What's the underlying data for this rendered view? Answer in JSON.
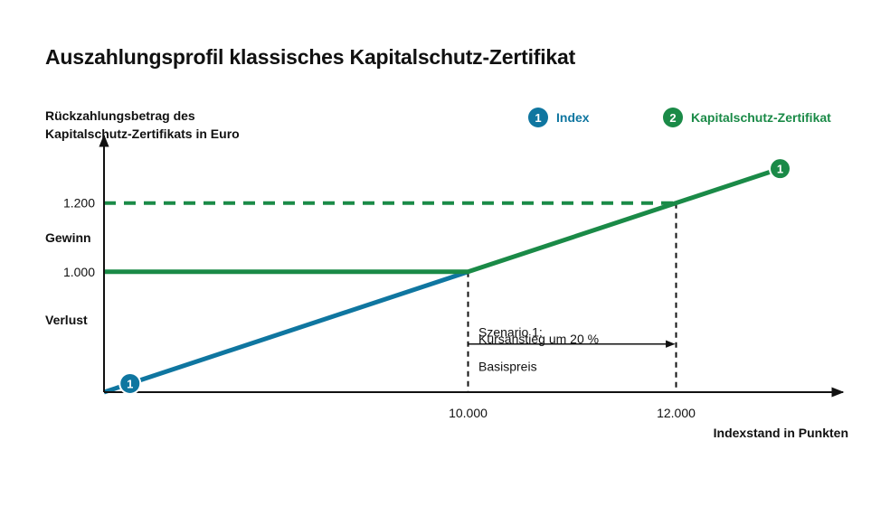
{
  "title": "Auszahlungsprofil klassisches Kapitalschutz-Zertifikat",
  "colors": {
    "index": "#0f76a0",
    "certificate": "#1a8a47",
    "axis": "#111111"
  },
  "chart_data": {
    "type": "line",
    "ylabel_lines": [
      "Rückzahlungsbetrag des",
      "Kapitalschutz-Zertifikats in Euro"
    ],
    "xlabel": "Indexstand in Punkten",
    "x_ticks": [
      {
        "value": 10000,
        "label": "10.000"
      },
      {
        "value": 12000,
        "label": "12.000"
      }
    ],
    "y_ticks": [
      {
        "value": 1000,
        "label": "1.000"
      },
      {
        "value": 1200,
        "label": "1.200"
      }
    ],
    "zone_labels": {
      "gain": "Gewinn",
      "loss": "Verlust"
    },
    "xlim": [
      6500,
      13500
    ],
    "ylim": [
      650,
      1370
    ],
    "series": [
      {
        "name": "Index",
        "marker": "1",
        "color": "#0f76a0",
        "style": "solid",
        "points": [
          [
            6500,
            650
          ],
          [
            10000,
            1000
          ]
        ]
      },
      {
        "name": "Kapitalschutz-Zertifikat",
        "marker": "2",
        "color": "#1a8a47",
        "style": "solid",
        "points": [
          [
            6500,
            1000
          ],
          [
            10000,
            1000
          ],
          [
            13000,
            1300
          ]
        ]
      }
    ],
    "reference_lines": [
      {
        "type": "horizontal",
        "y": 1200,
        "x_to": 12000,
        "style": "dashed",
        "color": "#1a8a47"
      },
      {
        "type": "vertical",
        "x": 10000,
        "y_to": 1000,
        "style": "dashed",
        "color": "#111111"
      },
      {
        "type": "vertical",
        "x": 12000,
        "y_to": 1200,
        "style": "dashed",
        "color": "#111111"
      }
    ],
    "arrow": {
      "from": 10000,
      "to": 12000,
      "y": 790
    },
    "markers": [
      {
        "label": "1",
        "x": 6750,
        "y": 675,
        "color": "#0f76a0"
      },
      {
        "label": "1",
        "x": 13000,
        "y": 1300,
        "color": "#1a8a47"
      }
    ],
    "annotations": [
      {
        "text": "Szenario 1:",
        "x": 10100,
        "y": 825
      },
      {
        "text": "Kursanstieg um 20 %",
        "x": 10100,
        "y": 805
      },
      {
        "text": "Basispreis",
        "x": 10100,
        "y": 725
      }
    ]
  }
}
